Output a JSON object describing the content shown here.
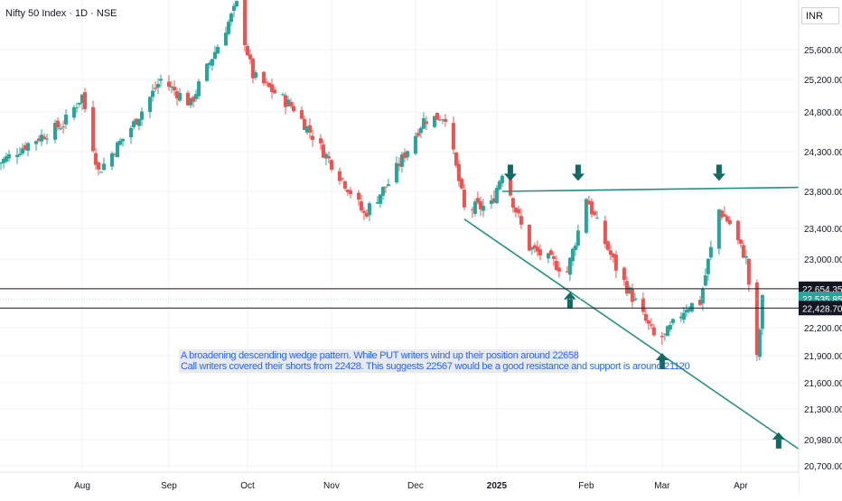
{
  "header": {
    "title": "Nifty 50 Index · 1D · NSE",
    "currency": "INR"
  },
  "note": {
    "line1": "A broadening descending wedge pattern. While PUT writers wind up their position around 22658",
    "line2": "Call writers  covered their shorts from 22428. This suggests  22567  would be a good resistance and support is around 21120"
  },
  "colors": {
    "up": "#26a69a",
    "down": "#ef5350",
    "trendline": "#26907f",
    "marker": "#0f6a62",
    "grid": "#f0f3fa",
    "text": "#131722"
  },
  "chart_data": {
    "type": "candlestick",
    "title": "Nifty 50 Index · 1D · NSE",
    "y_axis": {
      "ticks": [
        20700,
        20980,
        21300,
        21600,
        21900,
        22200,
        23000,
        23400,
        23800,
        24300,
        24800,
        25200,
        25600
      ],
      "tick_labels": [
        "20,700.00",
        "20,980.00",
        "21,300.00",
        "21,600.00",
        "21,900.00",
        "22,200.00",
        "23,000.00",
        "23,400.00",
        "23,800.00",
        "24,300.00",
        "24,800.00",
        "25,200.00",
        "25,600.00"
      ],
      "range": [
        20620,
        26100
      ]
    },
    "x_axis": {
      "labels": [
        "Aug",
        "Sep",
        "Oct",
        "Nov",
        "Dec",
        "2025",
        "Feb",
        "Mar",
        "Apr"
      ],
      "label_dates": [
        "2024-08-01",
        "2024-09-02",
        "2024-10-01",
        "2024-11-01",
        "2024-12-02",
        "2025-01-01",
        "2025-02-03",
        "2025-03-03",
        "2025-04-01"
      ]
    },
    "price_levels": [
      {
        "value": 22654.35,
        "label": "22,654.35",
        "style": "black-line"
      },
      {
        "value": 22535.85,
        "label": "22,535.85",
        "style": "teal-badge"
      },
      {
        "value": 22428.7,
        "label": "22,428.70",
        "style": "black-line"
      }
    ],
    "trendlines": [
      {
        "from": [
          "2025-01-03",
          23800
        ],
        "to": [
          "2025-04-25",
          23850
        ]
      },
      {
        "from": [
          "2024-12-20",
          23500
        ],
        "to": [
          "2025-04-25",
          20880
        ]
      }
    ],
    "markers": [
      {
        "date": "2025-01-06",
        "price": 24000,
        "direction": "down"
      },
      {
        "date": "2025-01-31",
        "price": 24000,
        "direction": "down"
      },
      {
        "date": "2025-03-24",
        "price": 24000,
        "direction": "down"
      },
      {
        "date": "2025-01-28",
        "price": 22550,
        "direction": "up"
      },
      {
        "date": "2025-03-03",
        "price": 21870,
        "direction": "up"
      },
      {
        "date": "2025-04-15",
        "price": 21000,
        "direction": "up"
      }
    ],
    "anchors": [
      {
        "date": "2024-07-01",
        "close": 24150
      },
      {
        "date": "2024-07-12",
        "close": 24400
      },
      {
        "date": "2024-07-25",
        "close": 24650
      },
      {
        "date": "2024-08-01",
        "close": 25000
      },
      {
        "date": "2024-08-07",
        "close": 24050
      },
      {
        "date": "2024-08-20",
        "close": 24650
      },
      {
        "date": "2024-08-30",
        "close": 25200
      },
      {
        "date": "2024-09-10",
        "close": 24900
      },
      {
        "date": "2024-09-20",
        "close": 25650
      },
      {
        "date": "2024-09-27",
        "close": 26180
      },
      {
        "date": "2024-10-03",
        "close": 25250
      },
      {
        "date": "2024-10-18",
        "close": 24850
      },
      {
        "date": "2024-10-31",
        "close": 24200
      },
      {
        "date": "2024-11-13",
        "close": 23550
      },
      {
        "date": "2024-11-22",
        "close": 23900
      },
      {
        "date": "2024-12-05",
        "close": 24700
      },
      {
        "date": "2024-12-13",
        "close": 24750
      },
      {
        "date": "2024-12-20",
        "close": 23600
      },
      {
        "date": "2024-12-30",
        "close": 23650
      },
      {
        "date": "2025-01-03",
        "close": 24050
      },
      {
        "date": "2025-01-13",
        "close": 23150
      },
      {
        "date": "2025-01-27",
        "close": 22850
      },
      {
        "date": "2025-02-03",
        "close": 23750
      },
      {
        "date": "2025-02-14",
        "close": 22900
      },
      {
        "date": "2025-02-28",
        "close": 22100
      },
      {
        "date": "2025-03-04",
        "close": 22100
      },
      {
        "date": "2025-03-12",
        "close": 22450
      },
      {
        "date": "2025-03-17",
        "close": 22500
      },
      {
        "date": "2025-03-24",
        "close": 23600
      },
      {
        "date": "2025-03-28",
        "close": 23450
      },
      {
        "date": "2025-04-03",
        "close": 23000
      },
      {
        "date": "2025-04-07",
        "close": 21850
      },
      {
        "date": "2025-04-09",
        "close": 22520
      }
    ],
    "last_close": 22535.85
  }
}
